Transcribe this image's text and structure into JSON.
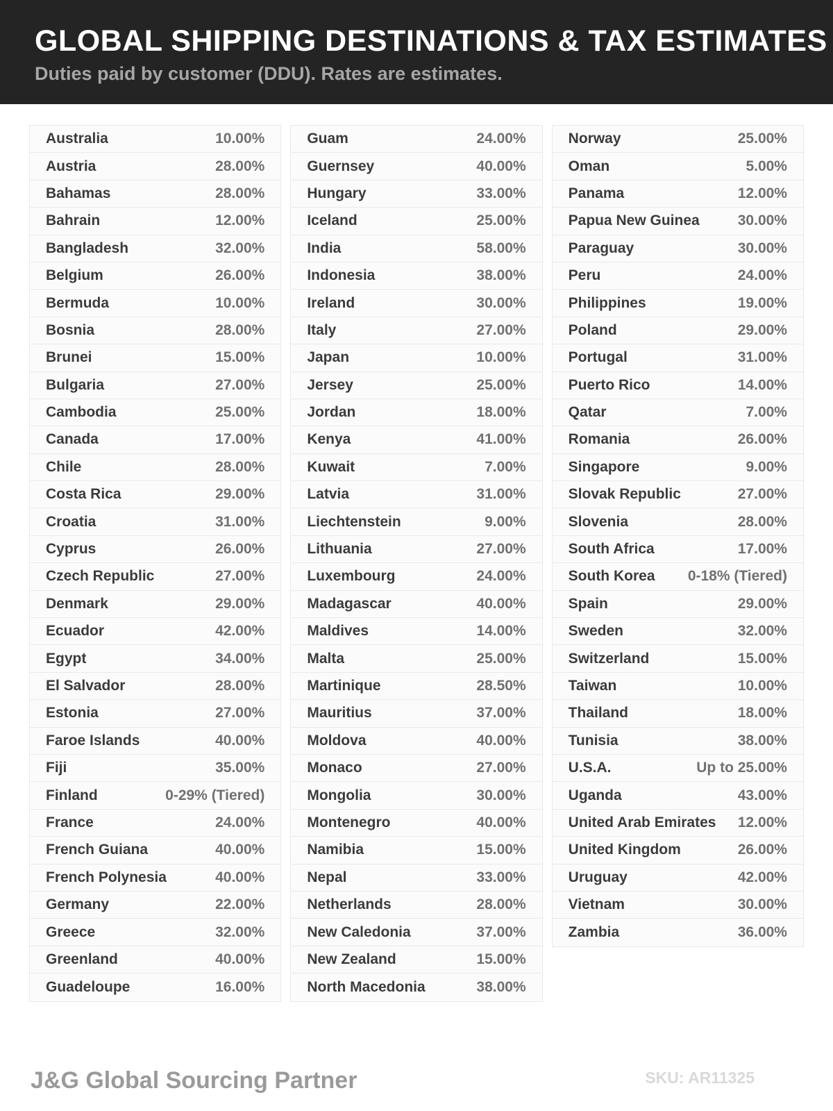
{
  "header": {
    "title": "GLOBAL SHIPPING DESTINATIONS & TAX ESTIMATES",
    "subtitle": "Duties paid by customer (DDU). Rates are estimates."
  },
  "table": {
    "columns": [
      [
        {
          "country": "Australia",
          "rate": "10.00%"
        },
        {
          "country": "Austria",
          "rate": "28.00%"
        },
        {
          "country": "Bahamas",
          "rate": "28.00%"
        },
        {
          "country": "Bahrain",
          "rate": "12.00%"
        },
        {
          "country": "Bangladesh",
          "rate": "32.00%"
        },
        {
          "country": "Belgium",
          "rate": "26.00%"
        },
        {
          "country": "Bermuda",
          "rate": "10.00%"
        },
        {
          "country": "Bosnia",
          "rate": "28.00%"
        },
        {
          "country": "Brunei",
          "rate": "15.00%"
        },
        {
          "country": "Bulgaria",
          "rate": "27.00%"
        },
        {
          "country": "Cambodia",
          "rate": "25.00%"
        },
        {
          "country": "Canada",
          "rate": "17.00%"
        },
        {
          "country": "Chile",
          "rate": "28.00%"
        },
        {
          "country": "Costa Rica",
          "rate": "29.00%"
        },
        {
          "country": "Croatia",
          "rate": "31.00%"
        },
        {
          "country": "Cyprus",
          "rate": "26.00%"
        },
        {
          "country": "Czech Republic",
          "rate": "27.00%"
        },
        {
          "country": "Denmark",
          "rate": "29.00%"
        },
        {
          "country": "Ecuador",
          "rate": "42.00%"
        },
        {
          "country": "Egypt",
          "rate": "34.00%"
        },
        {
          "country": "El Salvador",
          "rate": "28.00%"
        },
        {
          "country": "Estonia",
          "rate": "27.00%"
        },
        {
          "country": "Faroe Islands",
          "rate": "40.00%"
        },
        {
          "country": "Fiji",
          "rate": "35.00%"
        },
        {
          "country": "Finland",
          "rate": "0-29% (Tiered)"
        },
        {
          "country": "France",
          "rate": "24.00%"
        },
        {
          "country": "French Guiana",
          "rate": "40.00%"
        },
        {
          "country": "French Polynesia",
          "rate": "40.00%"
        },
        {
          "country": "Germany",
          "rate": "22.00%"
        },
        {
          "country": "Greece",
          "rate": "32.00%"
        },
        {
          "country": "Greenland",
          "rate": "40.00%"
        },
        {
          "country": "Guadeloupe",
          "rate": "16.00%"
        }
      ],
      [
        {
          "country": "Guam",
          "rate": "24.00%"
        },
        {
          "country": "Guernsey",
          "rate": "40.00%"
        },
        {
          "country": "Hungary",
          "rate": "33.00%"
        },
        {
          "country": "Iceland",
          "rate": "25.00%"
        },
        {
          "country": "India",
          "rate": "58.00%"
        },
        {
          "country": "Indonesia",
          "rate": "38.00%"
        },
        {
          "country": "Ireland",
          "rate": "30.00%"
        },
        {
          "country": "Italy",
          "rate": "27.00%"
        },
        {
          "country": "Japan",
          "rate": "10.00%"
        },
        {
          "country": "Jersey",
          "rate": "25.00%"
        },
        {
          "country": "Jordan",
          "rate": "18.00%"
        },
        {
          "country": "Kenya",
          "rate": "41.00%"
        },
        {
          "country": "Kuwait",
          "rate": "7.00%"
        },
        {
          "country": "Latvia",
          "rate": "31.00%"
        },
        {
          "country": "Liechtenstein",
          "rate": "9.00%"
        },
        {
          "country": "Lithuania",
          "rate": "27.00%"
        },
        {
          "country": "Luxembourg",
          "rate": "24.00%"
        },
        {
          "country": "Madagascar",
          "rate": "40.00%"
        },
        {
          "country": "Maldives",
          "rate": "14.00%"
        },
        {
          "country": "Malta",
          "rate": "25.00%"
        },
        {
          "country": "Martinique",
          "rate": "28.50%"
        },
        {
          "country": "Mauritius",
          "rate": "37.00%"
        },
        {
          "country": "Moldova",
          "rate": "40.00%"
        },
        {
          "country": "Monaco",
          "rate": "27.00%"
        },
        {
          "country": "Mongolia",
          "rate": "30.00%"
        },
        {
          "country": "Montenegro",
          "rate": "40.00%"
        },
        {
          "country": "Namibia",
          "rate": "15.00%"
        },
        {
          "country": "Nepal",
          "rate": "33.00%"
        },
        {
          "country": "Netherlands",
          "rate": "28.00%"
        },
        {
          "country": "New Caledonia",
          "rate": "37.00%"
        },
        {
          "country": "New Zealand",
          "rate": "15.00%"
        },
        {
          "country": "North Macedonia",
          "rate": "38.00%"
        }
      ],
      [
        {
          "country": "Norway",
          "rate": "25.00%"
        },
        {
          "country": "Oman",
          "rate": "5.00%"
        },
        {
          "country": "Panama",
          "rate": "12.00%"
        },
        {
          "country": "Papua New Guinea",
          "rate": "30.00%"
        },
        {
          "country": "Paraguay",
          "rate": "30.00%"
        },
        {
          "country": "Peru",
          "rate": "24.00%"
        },
        {
          "country": "Philippines",
          "rate": "19.00%"
        },
        {
          "country": "Poland",
          "rate": "29.00%"
        },
        {
          "country": "Portugal",
          "rate": "31.00%"
        },
        {
          "country": "Puerto Rico",
          "rate": "14.00%"
        },
        {
          "country": "Qatar",
          "rate": "7.00%"
        },
        {
          "country": "Romania",
          "rate": "26.00%"
        },
        {
          "country": "Singapore",
          "rate": "9.00%"
        },
        {
          "country": "Slovak Republic",
          "rate": "27.00%"
        },
        {
          "country": "Slovenia",
          "rate": "28.00%"
        },
        {
          "country": "South Africa",
          "rate": "17.00%"
        },
        {
          "country": "South Korea",
          "rate": "0-18% (Tiered)"
        },
        {
          "country": "Spain",
          "rate": "29.00%"
        },
        {
          "country": "Sweden",
          "rate": "32.00%"
        },
        {
          "country": "Switzerland",
          "rate": "15.00%"
        },
        {
          "country": "Taiwan",
          "rate": "10.00%"
        },
        {
          "country": "Thailand",
          "rate": "18.00%"
        },
        {
          "country": "Tunisia",
          "rate": "38.00%"
        },
        {
          "country": "U.S.A.",
          "rate": "Up to 25.00%"
        },
        {
          "country": "Uganda",
          "rate": "43.00%"
        },
        {
          "country": "United Arab Emirates",
          "rate": "12.00%"
        },
        {
          "country": "United Kingdom",
          "rate": "26.00%"
        },
        {
          "country": "Uruguay",
          "rate": "42.00%"
        },
        {
          "country": "Vietnam",
          "rate": "30.00%"
        },
        {
          "country": "Zambia",
          "rate": "36.00%"
        }
      ]
    ]
  },
  "footer": {
    "brand": "J&G Global Sourcing Partner",
    "sku": "SKU: AR11325"
  },
  "colors": {
    "header_bg": "#242424",
    "title_text": "#ffffff",
    "subtitle_text": "#a6a6a6",
    "row_bg": "#fbfbfb",
    "row_border": "#e9e9e9",
    "country_text": "#3b3b3b",
    "rate_text": "#707070",
    "brand_text": "#9a9a9a",
    "sku_text": "#d9d9d9"
  }
}
